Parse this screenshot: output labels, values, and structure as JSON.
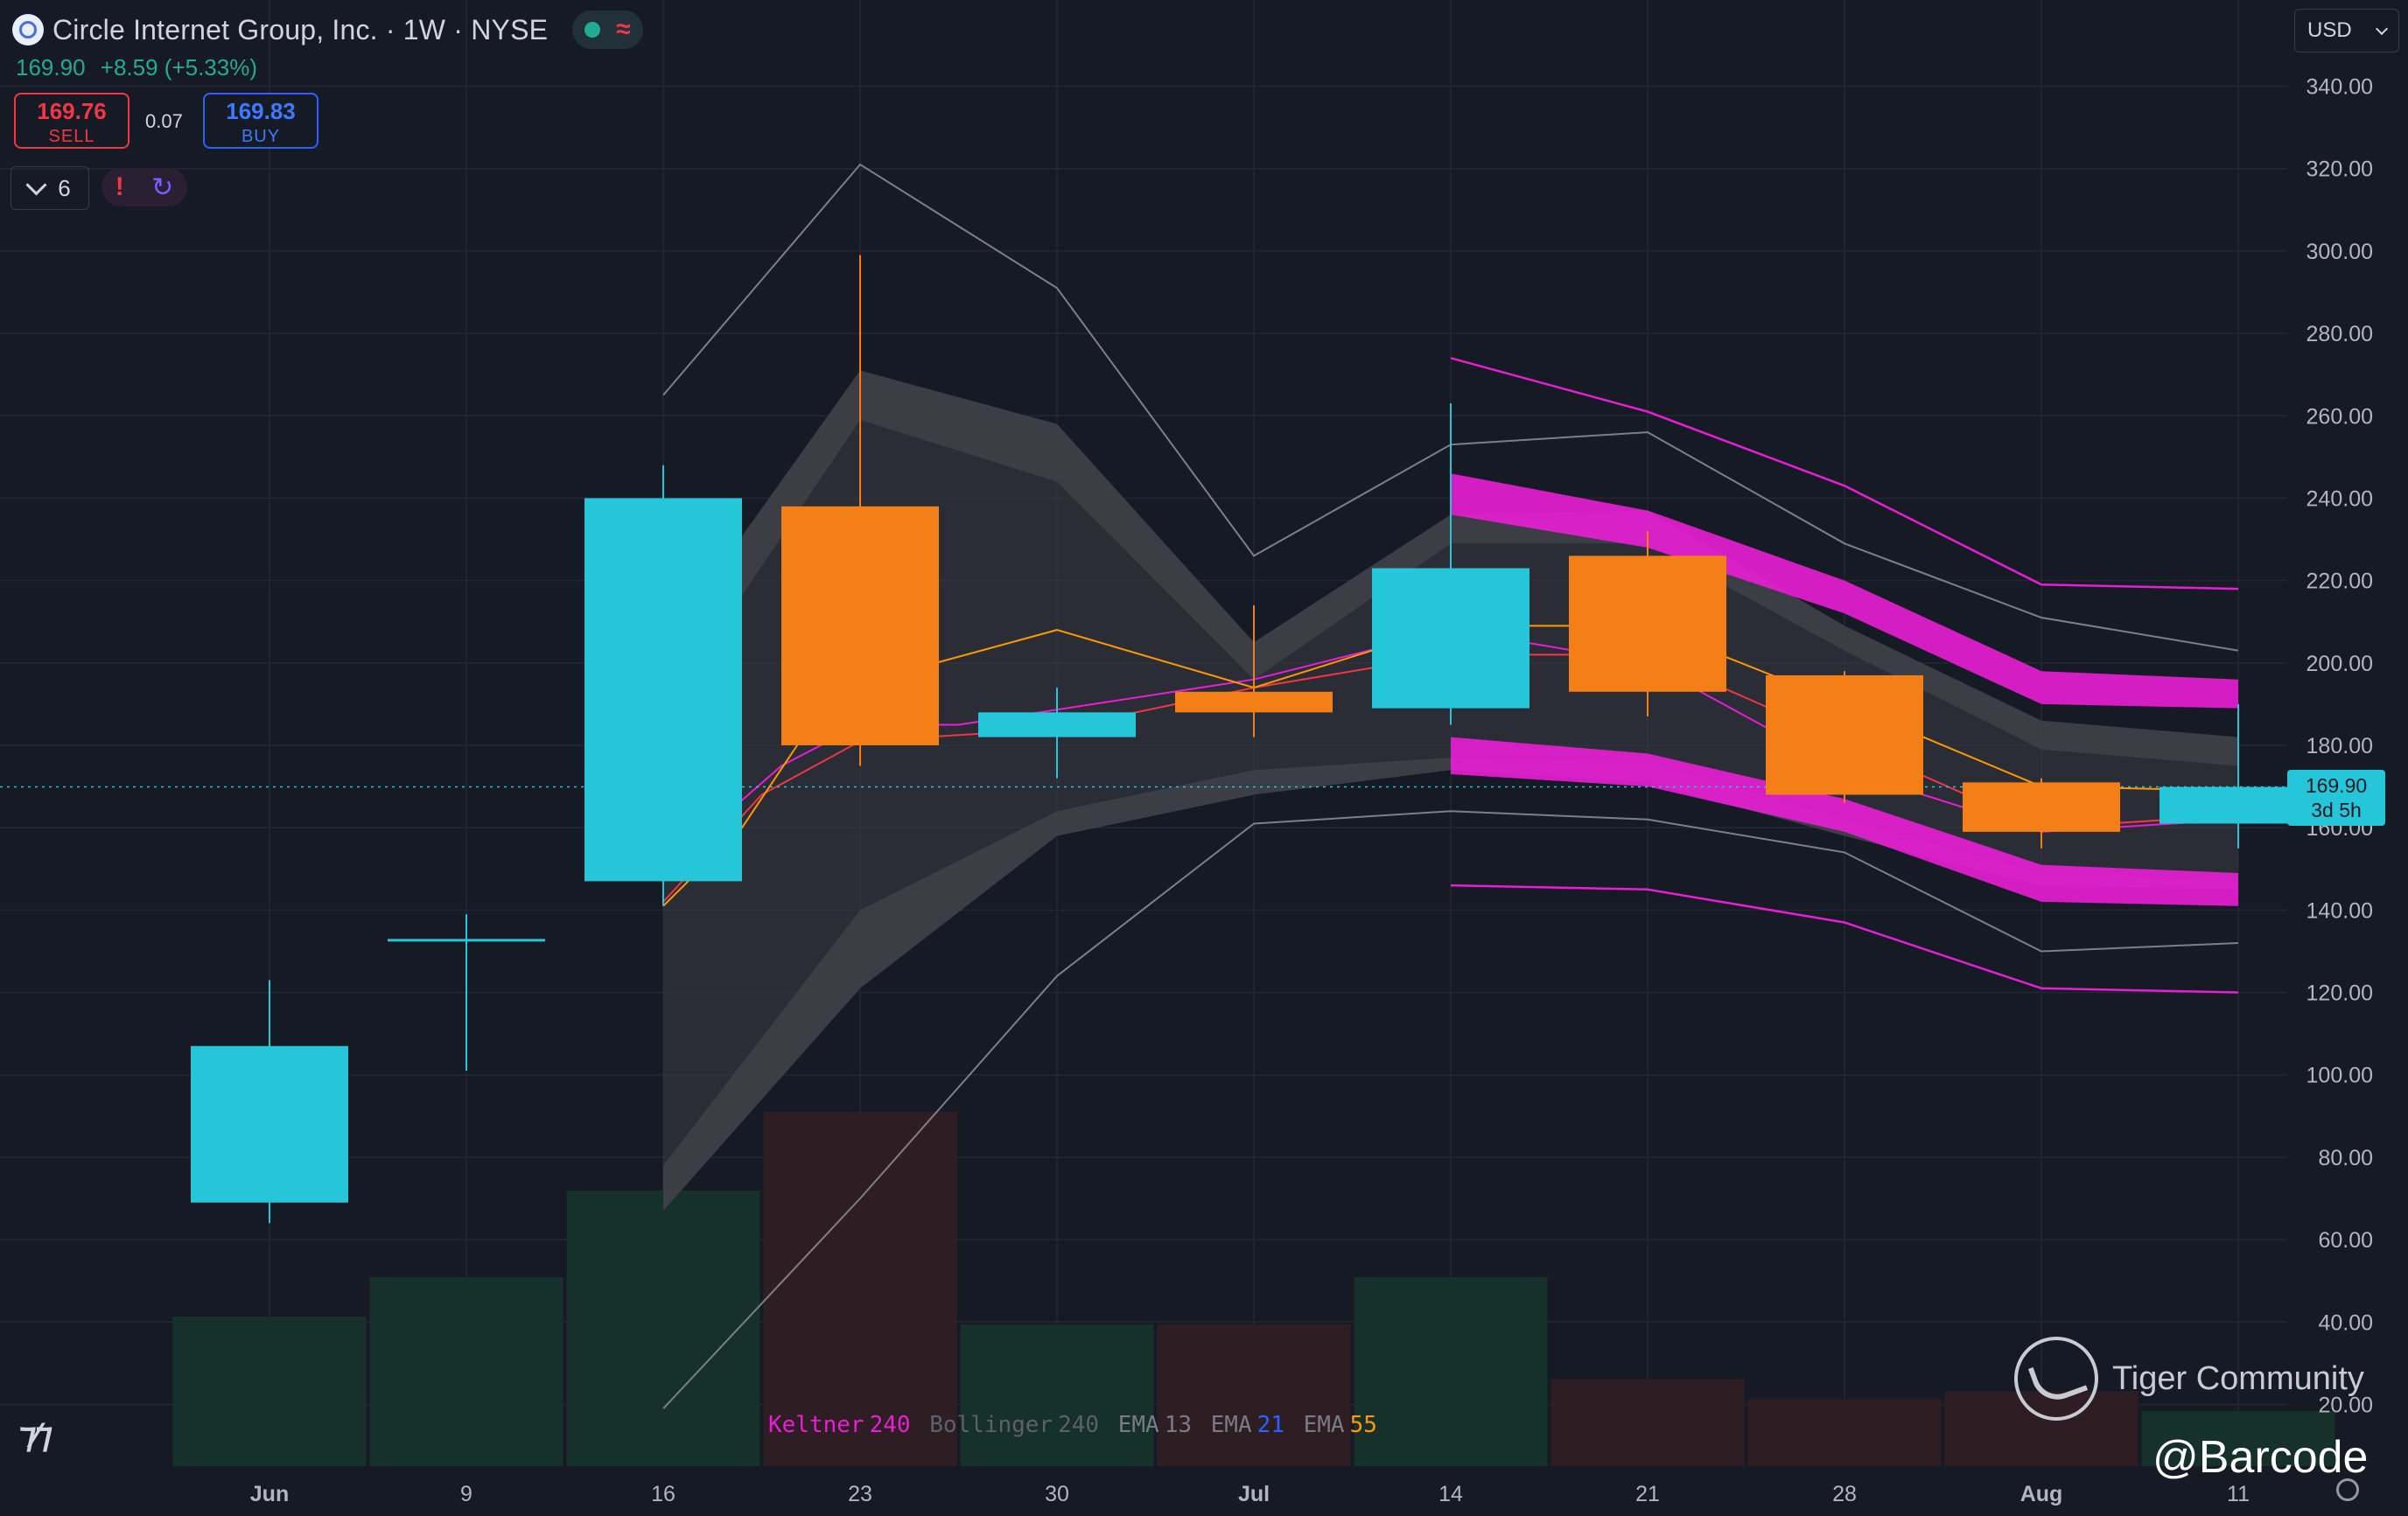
{
  "header": {
    "title": "Circle Internet Group, Inc. · 1W · NYSE",
    "last_price": "169.90",
    "change": "+8.59 (+5.33%)",
    "sell_price": "169.76",
    "sell_label": "SELL",
    "spread": "0.07",
    "buy_price": "169.83",
    "buy_label": "BUY",
    "indicator_count": "6",
    "currency": "USD"
  },
  "price_tag": {
    "price": "169.90",
    "countdown": "3d 5h"
  },
  "legend": [
    {
      "name": "Keltner",
      "value": "240",
      "name_color": "#e91ed4",
      "value_color": "#e91ed4"
    },
    {
      "name": "Bollinger",
      "value": "240",
      "name_color": "#5d606b",
      "value_color": "#5d606b"
    },
    {
      "name": "EMA",
      "value": "13",
      "name_color": "#787b86",
      "value_color": "#787b86"
    },
    {
      "name": "EMA",
      "value": "21",
      "name_color": "#787b86",
      "value_color": "#2962ff"
    },
    {
      "name": "EMA",
      "value": "55",
      "name_color": "#787b86",
      "value_color": "#ff9800"
    }
  ],
  "watermark": {
    "brand": "Tiger Community",
    "handle": "@Barcode"
  },
  "colors": {
    "up": "#26c6da",
    "down": "#f57f17",
    "keltner": "#e91ed4",
    "bollinger": "#787b86",
    "ema": "#ff9800"
  },
  "chart_data": {
    "type": "candlestick",
    "x_labels": [
      "Jun",
      "9",
      "16",
      "23",
      "30",
      "Jul",
      "14",
      "21",
      "28",
      "Aug",
      "11"
    ],
    "ylim": [
      15,
      345
    ],
    "y_ticks": [
      20,
      40,
      60,
      80,
      100,
      120,
      140,
      160,
      180,
      200,
      220,
      240,
      260,
      280,
      300,
      320,
      340
    ],
    "candles": [
      {
        "date": "Jun",
        "open": 69,
        "high": 123,
        "low": 64,
        "close": 107
      },
      {
        "date": "9",
        "open": 133,
        "high": 139,
        "low": 101,
        "close": 133
      },
      {
        "date": "16",
        "open": 147,
        "high": 248,
        "low": 141,
        "close": 240
      },
      {
        "date": "23",
        "open": 238,
        "high": 299,
        "low": 175,
        "close": 180
      },
      {
        "date": "30",
        "open": 182,
        "high": 194,
        "low": 172,
        "close": 188
      },
      {
        "date": "Jul",
        "open": 193,
        "high": 214,
        "low": 182,
        "close": 188
      },
      {
        "date": "14",
        "open": 189,
        "high": 263,
        "low": 185,
        "close": 223
      },
      {
        "date": "21",
        "open": 226,
        "high": 232,
        "low": 187,
        "close": 193
      },
      {
        "date": "28",
        "open": 197,
        "high": 198,
        "low": 166,
        "close": 168
      },
      {
        "date": "Aug",
        "open": 171,
        "high": 172,
        "low": 155,
        "close": 159
      },
      {
        "date": "11",
        "open": 161,
        "high": 190,
        "low": 155,
        "close": 169.9
      }
    ],
    "volume": [
      {
        "date": "Jun",
        "value": 0.38,
        "dir": "up"
      },
      {
        "date": "9",
        "value": 0.48,
        "dir": "up"
      },
      {
        "date": "16",
        "value": 0.7,
        "dir": "up"
      },
      {
        "date": "23",
        "value": 0.9,
        "dir": "down"
      },
      {
        "date": "30",
        "value": 0.36,
        "dir": "up"
      },
      {
        "date": "Jul",
        "value": 0.36,
        "dir": "down"
      },
      {
        "date": "14",
        "value": 0.48,
        "dir": "up"
      },
      {
        "date": "21",
        "value": 0.22,
        "dir": "down"
      },
      {
        "date": "28",
        "value": 0.17,
        "dir": "down"
      },
      {
        "date": "Aug",
        "value": 0.19,
        "dir": "down"
      },
      {
        "date": "11",
        "value": 0.14,
        "dir": "up"
      }
    ],
    "bollinger_outer": {
      "upper": [
        [
          2,
          265
        ],
        [
          3,
          321
        ],
        [
          4,
          291
        ],
        [
          5,
          226
        ],
        [
          6,
          253
        ],
        [
          7,
          256
        ],
        [
          8,
          229
        ],
        [
          9,
          211
        ],
        [
          10,
          203
        ]
      ],
      "lower": [
        [
          2,
          19
        ],
        [
          3,
          70
        ],
        [
          4,
          124
        ],
        [
          5,
          161
        ],
        [
          6,
          164
        ],
        [
          7,
          162
        ],
        [
          8,
          154
        ],
        [
          9,
          130
        ],
        [
          10,
          132
        ]
      ]
    },
    "bollinger_band": {
      "upper": [
        [
          2,
          204
        ],
        [
          3,
          271
        ],
        [
          4,
          258
        ],
        [
          5,
          205
        ],
        [
          6,
          236
        ],
        [
          7,
          237
        ],
        [
          8,
          209
        ],
        [
          9,
          186
        ],
        [
          10,
          182
        ]
      ],
      "upper_inner": [
        [
          2,
          188
        ],
        [
          3,
          259
        ],
        [
          4,
          244
        ],
        [
          5,
          196
        ],
        [
          6,
          229
        ],
        [
          7,
          229
        ],
        [
          8,
          203
        ],
        [
          9,
          179
        ],
        [
          10,
          175
        ]
      ],
      "lower_inner": [
        [
          2,
          78
        ],
        [
          3,
          140
        ],
        [
          4,
          164
        ],
        [
          5,
          174
        ],
        [
          6,
          177
        ],
        [
          7,
          176
        ],
        [
          8,
          162
        ],
        [
          9,
          149
        ],
        [
          10,
          147
        ]
      ],
      "lower": [
        [
          2,
          67
        ],
        [
          3,
          121
        ],
        [
          4,
          158
        ],
        [
          5,
          168
        ],
        [
          6,
          174
        ],
        [
          7,
          171
        ],
        [
          8,
          158
        ],
        [
          9,
          146
        ],
        [
          10,
          145
        ]
      ]
    },
    "keltner": {
      "upper": [
        [
          6,
          274
        ],
        [
          7,
          261
        ],
        [
          8,
          243
        ],
        [
          9,
          219
        ],
        [
          10,
          218
        ]
      ],
      "band_up_top": [
        [
          6,
          246
        ],
        [
          7,
          237
        ],
        [
          8,
          220
        ],
        [
          9,
          198
        ],
        [
          10,
          196
        ]
      ],
      "band_up_bot": [
        [
          6,
          236
        ],
        [
          7,
          228
        ],
        [
          8,
          212
        ],
        [
          9,
          190
        ],
        [
          10,
          189
        ]
      ],
      "band_lo_top": [
        [
          6,
          182
        ],
        [
          7,
          178
        ],
        [
          8,
          167
        ],
        [
          9,
          151
        ],
        [
          10,
          149
        ]
      ],
      "band_lo_bot": [
        [
          6,
          173
        ],
        [
          7,
          170
        ],
        [
          8,
          159
        ],
        [
          9,
          142
        ],
        [
          10,
          141
        ]
      ],
      "lower": [
        [
          6,
          146
        ],
        [
          7,
          145
        ],
        [
          8,
          137
        ],
        [
          9,
          121
        ],
        [
          10,
          120
        ]
      ]
    },
    "ema_orange": [
      [
        2,
        141
      ],
      [
        2.4,
        160
      ],
      [
        2.75,
        185
      ],
      [
        3,
        195
      ],
      [
        4,
        208
      ],
      [
        5,
        194
      ],
      [
        6,
        209
      ],
      [
        7,
        209
      ],
      [
        8,
        190
      ],
      [
        9,
        170
      ],
      [
        10,
        169
      ]
    ],
    "ema_red": [
      [
        2,
        142
      ],
      [
        2.5,
        168
      ],
      [
        3,
        181
      ],
      [
        4,
        184
      ],
      [
        5,
        194
      ],
      [
        6,
        202
      ],
      [
        7,
        202
      ],
      [
        8,
        181
      ],
      [
        9,
        160
      ],
      [
        10,
        163
      ]
    ],
    "ema_magenta": [
      [
        2,
        150
      ],
      [
        2.6,
        175
      ],
      [
        3,
        185
      ],
      [
        3.5,
        185
      ],
      [
        5,
        196
      ],
      [
        6,
        208
      ],
      [
        7,
        200
      ],
      [
        8,
        174
      ],
      [
        9,
        159
      ],
      [
        10,
        162
      ]
    ]
  }
}
